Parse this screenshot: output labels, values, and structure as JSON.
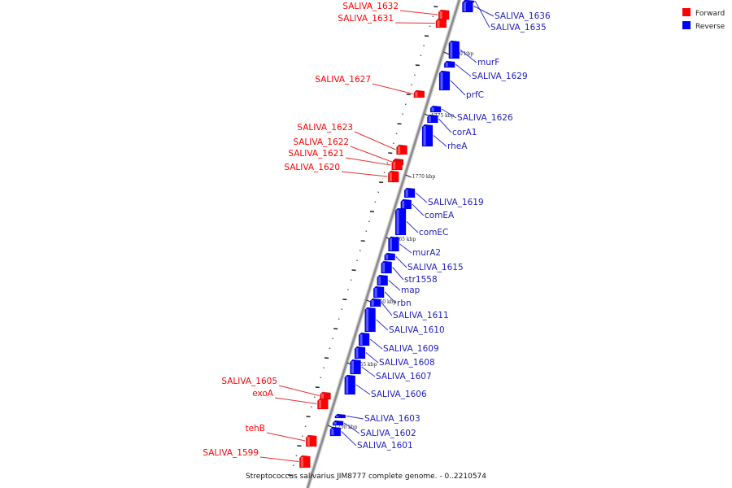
{
  "caption": "Streptococcus salivarius JIM8777 complete genome. - 0..2210574",
  "legend": [
    {
      "label": "Forward",
      "color": "#ff0000"
    },
    {
      "label": "Reverse",
      "color": "#0000ff"
    }
  ],
  "colors": {
    "forward": "#ff0000",
    "reverse": "#0000ff",
    "forward_line": "#e83030",
    "reverse_line": "#3333cc",
    "backbone": "#8c8c8c"
  },
  "kbp_marks": [
    "1780 kbp",
    "1775 kbp",
    "1770 kbp",
    "1765 kbp",
    "1760 kbp",
    "1755 kbp",
    "1750 kbp"
  ],
  "forward_genes": [
    "SALIVA_1632",
    "SALIVA_1631",
    "SALIVA_1627",
    "SALIVA_1623",
    "SALIVA_1622",
    "SALIVA_1621",
    "SALIVA_1620",
    "SALIVA_1605",
    "exoA",
    "tehB",
    "SALIVA_1599"
  ],
  "reverse_genes": [
    "SALIVA_1636",
    "SALIVA_1635",
    "murF",
    "SALIVA_1629",
    "prfC",
    "SALIVA_1626",
    "corA1",
    "rheA",
    "SALIVA_1619",
    "comEA",
    "comEC",
    "murA2",
    "SALIVA_1615",
    "str1558",
    "map",
    "rbn",
    "SALIVA_1611",
    "SALIVA_1610",
    "SALIVA_1609",
    "SALIVA_1608",
    "SALIVA_1607",
    "SALIVA_1606",
    "SALIVA_1603",
    "SALIVA_1602",
    "SALIVA_1601"
  ]
}
